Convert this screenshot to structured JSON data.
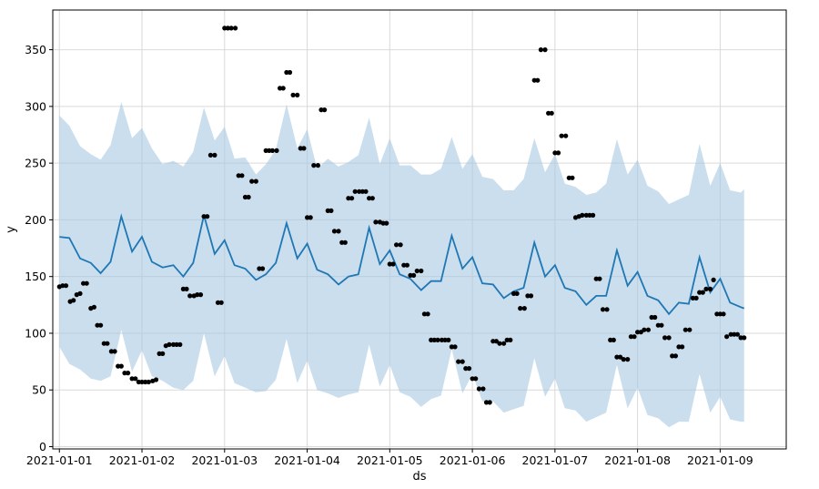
{
  "chart_data": {
    "type": "scatter",
    "title": "",
    "xlabel": "ds",
    "ylabel": "y",
    "xlim": [
      -0.08,
      8.8
    ],
    "ylim": [
      -2,
      385
    ],
    "x_ticks": [
      {
        "value": 0,
        "label": "2021-01-01"
      },
      {
        "value": 1,
        "label": "2021-01-02"
      },
      {
        "value": 2,
        "label": "2021-01-03"
      },
      {
        "value": 3,
        "label": "2021-01-04"
      },
      {
        "value": 4,
        "label": "2021-01-05"
      },
      {
        "value": 5,
        "label": "2021-01-06"
      },
      {
        "value": 6,
        "label": "2021-01-07"
      },
      {
        "value": 7,
        "label": "2021-01-08"
      },
      {
        "value": 8,
        "label": "2021-01-09"
      }
    ],
    "y_ticks": [
      0,
      50,
      100,
      150,
      200,
      250,
      300,
      350
    ],
    "grid": true,
    "colors": {
      "forecast_line": "#1f77b4",
      "interval_fill": "#a6c8e2",
      "points": "#000000",
      "grid": "#d9d9d9"
    },
    "series": [
      {
        "kind": "observed",
        "points": [
          [
            0.0,
            141
          ],
          [
            0.04,
            142
          ],
          [
            0.08,
            142
          ],
          [
            0.13,
            128
          ],
          [
            0.17,
            129
          ],
          [
            0.21,
            134
          ],
          [
            0.25,
            135
          ],
          [
            0.29,
            144
          ],
          [
            0.33,
            144
          ],
          [
            0.38,
            122
          ],
          [
            0.42,
            123
          ],
          [
            0.46,
            107
          ],
          [
            0.5,
            107
          ],
          [
            0.54,
            91
          ],
          [
            0.58,
            91
          ],
          [
            0.63,
            84
          ],
          [
            0.67,
            84
          ],
          [
            0.71,
            71
          ],
          [
            0.75,
            71
          ],
          [
            0.79,
            65
          ],
          [
            0.83,
            65
          ],
          [
            0.88,
            60
          ],
          [
            0.92,
            60
          ],
          [
            0.96,
            57
          ],
          [
            1.0,
            57
          ],
          [
            1.04,
            57
          ],
          [
            1.08,
            57
          ],
          [
            1.13,
            58
          ],
          [
            1.17,
            59
          ],
          [
            1.21,
            82
          ],
          [
            1.25,
            82
          ],
          [
            1.29,
            89
          ],
          [
            1.33,
            90
          ],
          [
            1.38,
            90
          ],
          [
            1.42,
            90
          ],
          [
            1.46,
            90
          ],
          [
            1.5,
            139
          ],
          [
            1.54,
            139
          ],
          [
            1.58,
            133
          ],
          [
            1.63,
            133
          ],
          [
            1.67,
            134
          ],
          [
            1.71,
            134
          ],
          [
            1.75,
            203
          ],
          [
            1.79,
            203
          ],
          [
            1.83,
            257
          ],
          [
            1.88,
            257
          ],
          [
            1.92,
            127
          ],
          [
            1.96,
            127
          ],
          [
            2.0,
            369
          ],
          [
            2.04,
            369
          ],
          [
            2.08,
            369
          ],
          [
            2.13,
            369
          ],
          [
            2.17,
            239
          ],
          [
            2.21,
            239
          ],
          [
            2.25,
            220
          ],
          [
            2.29,
            220
          ],
          [
            2.33,
            234
          ],
          [
            2.38,
            234
          ],
          [
            2.42,
            157
          ],
          [
            2.46,
            157
          ],
          [
            2.5,
            261
          ],
          [
            2.54,
            261
          ],
          [
            2.58,
            261
          ],
          [
            2.63,
            261
          ],
          [
            2.67,
            316
          ],
          [
            2.71,
            316
          ],
          [
            2.75,
            330
          ],
          [
            2.79,
            330
          ],
          [
            2.83,
            310
          ],
          [
            2.88,
            310
          ],
          [
            2.92,
            263
          ],
          [
            2.96,
            263
          ],
          [
            3.0,
            202
          ],
          [
            3.04,
            202
          ],
          [
            3.08,
            248
          ],
          [
            3.13,
            248
          ],
          [
            3.17,
            297
          ],
          [
            3.21,
            297
          ],
          [
            3.25,
            208
          ],
          [
            3.29,
            208
          ],
          [
            3.33,
            190
          ],
          [
            3.38,
            190
          ],
          [
            3.42,
            180
          ],
          [
            3.46,
            180
          ],
          [
            3.5,
            219
          ],
          [
            3.54,
            219
          ],
          [
            3.58,
            225
          ],
          [
            3.63,
            225
          ],
          [
            3.67,
            225
          ],
          [
            3.71,
            225
          ],
          [
            3.75,
            219
          ],
          [
            3.79,
            219
          ],
          [
            3.83,
            198
          ],
          [
            3.88,
            198
          ],
          [
            3.92,
            197
          ],
          [
            3.96,
            197
          ],
          [
            4.0,
            161
          ],
          [
            4.04,
            161
          ],
          [
            4.08,
            178
          ],
          [
            4.13,
            178
          ],
          [
            4.17,
            160
          ],
          [
            4.21,
            160
          ],
          [
            4.25,
            151
          ],
          [
            4.29,
            151
          ],
          [
            4.33,
            155
          ],
          [
            4.38,
            155
          ],
          [
            4.42,
            117
          ],
          [
            4.46,
            117
          ],
          [
            4.5,
            94
          ],
          [
            4.54,
            94
          ],
          [
            4.58,
            94
          ],
          [
            4.63,
            94
          ],
          [
            4.67,
            94
          ],
          [
            4.71,
            94
          ],
          [
            4.75,
            88
          ],
          [
            4.79,
            88
          ],
          [
            4.83,
            75
          ],
          [
            4.88,
            75
          ],
          [
            4.92,
            69
          ],
          [
            4.96,
            69
          ],
          [
            5.0,
            60
          ],
          [
            5.04,
            60
          ],
          [
            5.08,
            51
          ],
          [
            5.13,
            51
          ],
          [
            5.17,
            39
          ],
          [
            5.21,
            39
          ],
          [
            5.25,
            93
          ],
          [
            5.29,
            93
          ],
          [
            5.33,
            91
          ],
          [
            5.38,
            91
          ],
          [
            5.42,
            94
          ],
          [
            5.46,
            94
          ],
          [
            5.5,
            135
          ],
          [
            5.54,
            135
          ],
          [
            5.58,
            122
          ],
          [
            5.63,
            122
          ],
          [
            5.67,
            133
          ],
          [
            5.71,
            133
          ],
          [
            5.75,
            323
          ],
          [
            5.79,
            323
          ],
          [
            5.83,
            350
          ],
          [
            5.88,
            350
          ],
          [
            5.92,
            294
          ],
          [
            5.96,
            294
          ],
          [
            6.0,
            259
          ],
          [
            6.04,
            259
          ],
          [
            6.08,
            274
          ],
          [
            6.13,
            274
          ],
          [
            6.17,
            237
          ],
          [
            6.21,
            237
          ],
          [
            6.25,
            202
          ],
          [
            6.29,
            203
          ],
          [
            6.33,
            204
          ],
          [
            6.38,
            204
          ],
          [
            6.42,
            204
          ],
          [
            6.46,
            204
          ],
          [
            6.5,
            148
          ],
          [
            6.54,
            148
          ],
          [
            6.58,
            121
          ],
          [
            6.63,
            121
          ],
          [
            6.67,
            94
          ],
          [
            6.71,
            94
          ],
          [
            6.75,
            79
          ],
          [
            6.79,
            79
          ],
          [
            6.83,
            77
          ],
          [
            6.88,
            77
          ],
          [
            6.92,
            97
          ],
          [
            6.96,
            97
          ],
          [
            7.0,
            101
          ],
          [
            7.04,
            101
          ],
          [
            7.08,
            103
          ],
          [
            7.13,
            103
          ],
          [
            7.17,
            114
          ],
          [
            7.21,
            114
          ],
          [
            7.25,
            107
          ],
          [
            7.29,
            107
          ],
          [
            7.33,
            96
          ],
          [
            7.38,
            96
          ],
          [
            7.42,
            80
          ],
          [
            7.46,
            80
          ],
          [
            7.5,
            88
          ],
          [
            7.54,
            88
          ],
          [
            7.58,
            103
          ],
          [
            7.63,
            103
          ],
          [
            7.67,
            131
          ],
          [
            7.71,
            131
          ],
          [
            7.75,
            136
          ],
          [
            7.79,
            136
          ],
          [
            7.83,
            139
          ],
          [
            7.88,
            139
          ],
          [
            7.92,
            147
          ],
          [
            7.96,
            117
          ],
          [
            8.0,
            117
          ],
          [
            8.04,
            117
          ],
          [
            8.08,
            97
          ],
          [
            8.13,
            99
          ],
          [
            8.17,
            99
          ],
          [
            8.21,
            99
          ],
          [
            8.25,
            96
          ],
          [
            8.29,
            96
          ]
        ]
      },
      {
        "kind": "forecast",
        "x": [
          0,
          0.12,
          0.25,
          0.38,
          0.5,
          0.62,
          0.75,
          0.88,
          1,
          1.12,
          1.25,
          1.38,
          1.5,
          1.62,
          1.75,
          1.88,
          2,
          2.12,
          2.25,
          2.38,
          2.5,
          2.62,
          2.75,
          2.88,
          3,
          3.12,
          3.25,
          3.38,
          3.5,
          3.62,
          3.75,
          3.88,
          4,
          4.12,
          4.25,
          4.38,
          4.5,
          4.62,
          4.75,
          4.88,
          5,
          5.12,
          5.25,
          5.38,
          5.5,
          5.62,
          5.75,
          5.88,
          6,
          6.12,
          6.25,
          6.38,
          6.5,
          6.62,
          6.75,
          6.88,
          7,
          7.12,
          7.25,
          7.38,
          7.5,
          7.62,
          7.75,
          7.88,
          8,
          8.12,
          8.25,
          8.29
        ],
        "yhat": [
          185,
          184,
          166,
          162,
          153,
          163,
          203,
          172,
          185,
          163,
          158,
          160,
          150,
          162,
          204,
          170,
          182,
          160,
          157,
          147,
          152,
          162,
          197,
          166,
          179,
          156,
          152,
          143,
          150,
          152,
          193,
          161,
          173,
          152,
          148,
          138,
          146,
          146,
          186,
          157,
          167,
          144,
          143,
          131,
          137,
          140,
          180,
          150,
          160,
          140,
          137,
          125,
          133,
          133,
          173,
          142,
          154,
          133,
          129,
          117,
          127,
          126,
          167,
          136,
          148,
          127,
          123,
          122
        ],
        "lower": [
          88,
          73,
          68,
          60,
          58,
          62,
          103,
          66,
          85,
          62,
          58,
          52,
          50,
          58,
          100,
          62,
          80,
          56,
          52,
          48,
          49,
          59,
          95,
          56,
          76,
          50,
          47,
          43,
          46,
          48,
          90,
          53,
          72,
          48,
          44,
          35,
          42,
          45,
          86,
          47,
          64,
          40,
          40,
          30,
          33,
          36,
          78,
          44,
          60,
          34,
          32,
          22,
          26,
          30,
          72,
          34,
          52,
          28,
          25,
          17,
          22,
          22,
          64,
          30,
          44,
          24,
          22,
          22
        ],
        "upper": [
          292,
          283,
          265,
          258,
          253,
          266,
          304,
          272,
          281,
          263,
          249,
          252,
          247,
          260,
          299,
          270,
          282,
          254,
          255,
          240,
          249,
          262,
          302,
          263,
          280,
          245,
          254,
          247,
          251,
          257,
          290,
          249,
          272,
          248,
          248,
          240,
          240,
          245,
          273,
          245,
          258,
          238,
          236,
          226,
          226,
          236,
          272,
          242,
          258,
          232,
          229,
          222,
          224,
          232,
          271,
          240,
          253,
          230,
          225,
          214,
          218,
          222,
          267,
          230,
          250,
          226,
          224,
          227
        ]
      }
    ]
  }
}
